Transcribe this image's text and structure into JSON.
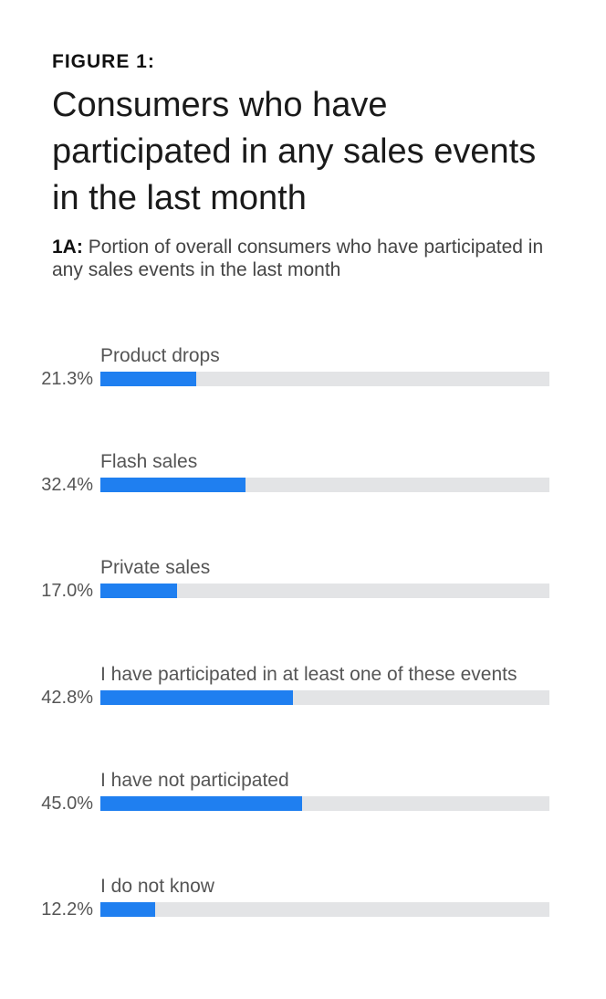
{
  "figure_label": "FIGURE 1:",
  "title": "Consumers who have participated in any sales events in the last month",
  "subtitle_label": "1A:",
  "subtitle_text": "Portion of overall consumers who have participated in any sales events in the last month",
  "colors": {
    "bar": "#1f7ff0",
    "track": "#e3e4e6"
  },
  "chart_data": {
    "type": "bar",
    "orientation": "horizontal",
    "title": "Consumers who have participated in any sales events in the last month",
    "subtitle": "1A: Portion of overall consumers who have participated in any sales events in the last month",
    "categories": [
      "Product drops",
      "Flash sales",
      "Private sales",
      "I have participated in at least one of these events",
      "I have not participated",
      "I do not know"
    ],
    "values": [
      21.3,
      32.4,
      17.0,
      42.8,
      45.0,
      12.2
    ],
    "value_labels": [
      "21.3%",
      "32.4%",
      "17.0%",
      "42.8%",
      "45.0%",
      "12.2%"
    ],
    "xlim": [
      0,
      100
    ],
    "unit": "%",
    "grid": false,
    "legend": "none"
  }
}
